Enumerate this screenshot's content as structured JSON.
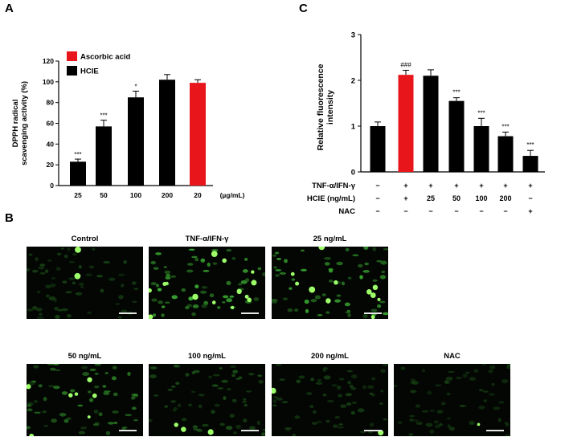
{
  "panels": {
    "a": "A",
    "b": "B",
    "c": "C"
  },
  "chart_data": [
    {
      "type": "bar",
      "panel": "A",
      "ylabel": "DPPH radical scavenging activity (%)",
      "xunit": "(µg/mL)",
      "ylim": [
        0,
        120
      ],
      "yticks": [
        "0",
        "20",
        "40",
        "60",
        "80",
        "100",
        "120"
      ],
      "categories": [
        "25",
        "50",
        "100",
        "200",
        "20"
      ],
      "values": [
        23,
        57,
        85,
        102,
        99
      ],
      "errors": [
        2.5,
        6,
        6,
        5,
        3
      ],
      "significance": [
        "***",
        "***",
        "*",
        "",
        ""
      ],
      "bar_colors": [
        "#000000",
        "#000000",
        "#000000",
        "#000000",
        "#e8161b"
      ],
      "legend": [
        {
          "label": "Ascorbic acid",
          "color": "#e8161b"
        },
        {
          "label": "HCIE",
          "color": "#000000"
        }
      ]
    },
    {
      "type": "bar",
      "panel": "C",
      "ylabel": "Relative fluorescence intensity",
      "ylim": [
        0,
        3
      ],
      "yticks": [
        "0",
        "1",
        "2",
        "3"
      ],
      "values": [
        1.0,
        2.12,
        2.1,
        1.55,
        1.0,
        0.78,
        0.35
      ],
      "errors": [
        0.09,
        0.1,
        0.13,
        0.07,
        0.17,
        0.09,
        0.12
      ],
      "significance": [
        "",
        "###",
        "",
        "***",
        "***",
        "***",
        "***"
      ],
      "bar_colors": [
        "#000000",
        "#e8161b",
        "#000000",
        "#000000",
        "#000000",
        "#000000",
        "#000000"
      ],
      "conditions": [
        {
          "label": "TNF-α/IFN-γ",
          "values": [
            "−",
            "+",
            "+",
            "+",
            "+",
            "+",
            "+"
          ]
        },
        {
          "label": "HCIE (ng/mL)",
          "values": [
            "−",
            "+",
            "25",
            "50",
            "100",
            "200",
            "−"
          ]
        },
        {
          "label": "NAC",
          "values": [
            "−",
            "−",
            "−",
            "−",
            "−",
            "−",
            "+"
          ]
        }
      ]
    }
  ],
  "micrographs": [
    {
      "title": "Control",
      "brightness": 0.35
    },
    {
      "title": "TNF-α/IFN-γ",
      "brightness": 1.0
    },
    {
      "title": "25 ng/mL",
      "brightness": 0.9
    },
    {
      "title": "50 ng/mL",
      "brightness": 0.7
    },
    {
      "title": "100 ng/mL",
      "brightness": 0.45
    },
    {
      "title": "200 ng/mL",
      "brightness": 0.35
    },
    {
      "title": "NAC",
      "brightness": 0.25
    }
  ]
}
